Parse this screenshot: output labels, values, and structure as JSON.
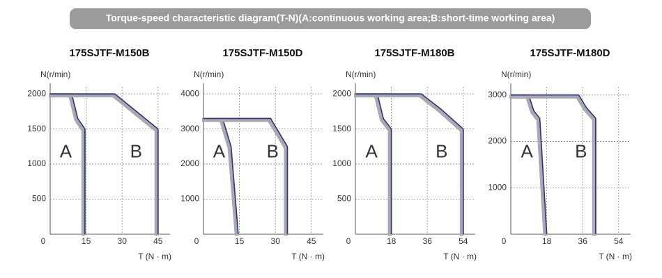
{
  "title": "Torque-speed characteristic diagram(T-N)(A:continuous working area;B:short-time working area)",
  "chart_data": [
    {
      "type": "line",
      "title": "175SJTF-M150B",
      "y_label": "N(r/min)",
      "x_label": "T (N · m)",
      "xlim": [
        0,
        50
      ],
      "ylim": [
        0,
        2150
      ],
      "xticks": [
        0,
        15,
        30,
        45
      ],
      "yticks": [
        500,
        1000,
        1500,
        2000
      ],
      "grid": true,
      "series": [
        {
          "name": "A",
          "color": "#2e3192",
          "x": [
            0,
            9,
            11.5,
            14.5,
            14.5
          ],
          "values": [
            2000,
            2000,
            1650,
            1500,
            0
          ]
        },
        {
          "name": "B",
          "color": "#2e3192",
          "x": [
            0,
            27,
            45,
            45
          ],
          "values": [
            2000,
            2000,
            1500,
            0
          ]
        }
      ]
    },
    {
      "type": "line",
      "title": "175SJTF-M150D",
      "y_label": "N(r/min)",
      "x_label": "T (N · m)",
      "xlim": [
        0,
        50
      ],
      "ylim": [
        0,
        4300
      ],
      "xticks": [
        0,
        15,
        30,
        45
      ],
      "yticks": [
        1000,
        2000,
        3000,
        4000
      ],
      "grid": true,
      "series": [
        {
          "name": "A",
          "color": "#2e3192",
          "x": [
            0,
            8,
            11.5,
            14.5
          ],
          "values": [
            3300,
            3300,
            2500,
            0
          ]
        },
        {
          "name": "B",
          "color": "#2e3192",
          "x": [
            0,
            28,
            35,
            35
          ],
          "values": [
            3300,
            3300,
            2500,
            0
          ]
        }
      ]
    },
    {
      "type": "line",
      "title": "175SJTF-M180B",
      "y_label": "N(r/min)",
      "x_label": "T (N · m)",
      "xlim": [
        0,
        60
      ],
      "ylim": [
        0,
        2150
      ],
      "xticks": [
        0,
        18,
        36,
        54
      ],
      "yticks": [
        500,
        1000,
        1500,
        2000
      ],
      "grid": true,
      "series": [
        {
          "name": "A",
          "color": "#2e3192",
          "x": [
            0,
            11,
            14,
            18,
            18
          ],
          "values": [
            2000,
            2000,
            1650,
            1500,
            0
          ]
        },
        {
          "name": "B",
          "color": "#2e3192",
          "x": [
            0,
            33,
            43,
            54,
            54
          ],
          "values": [
            2000,
            2000,
            1780,
            1500,
            0
          ]
        }
      ]
    },
    {
      "type": "line",
      "title": "175SJTF-M180D",
      "y_label": "N(r/min)",
      "x_label": "T (N · m)",
      "xlim": [
        0,
        60
      ],
      "ylim": [
        0,
        3250
      ],
      "xticks": [
        0,
        18,
        36,
        54
      ],
      "yticks": [
        1000,
        2000,
        3000
      ],
      "grid": true,
      "series": [
        {
          "name": "A",
          "color": "#2e3192",
          "x": [
            0,
            9,
            11.5,
            14.5,
            18
          ],
          "values": [
            3000,
            3000,
            2660,
            2500,
            0
          ]
        },
        {
          "name": "B",
          "color": "#2e3192",
          "x": [
            0,
            34,
            38,
            42.5,
            42.5
          ],
          "values": [
            3000,
            3000,
            2720,
            2500,
            0
          ]
        }
      ]
    }
  ]
}
